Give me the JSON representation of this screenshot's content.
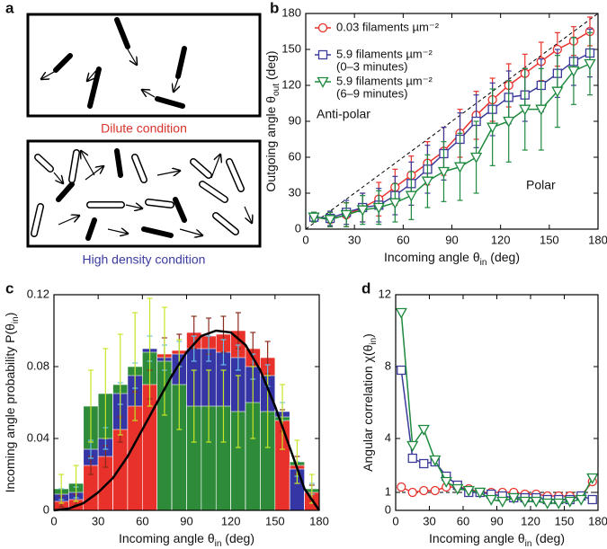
{
  "panel_a": {
    "label": "a",
    "dilute": "Dilute condition",
    "dense": "High density condition"
  },
  "chart_data": [
    {
      "type": "line",
      "label": "b",
      "xlabel": {
        "text": "Incoming angle θ",
        "sub": "in",
        "tail": " (deg)"
      },
      "ylabel": {
        "text": "Outgoing angle θ",
        "sub": "out",
        "tail": " (deg)"
      },
      "x": [
        5,
        15,
        25,
        35,
        45,
        55,
        65,
        75,
        85,
        95,
        105,
        115,
        125,
        135,
        145,
        155,
        165,
        175
      ],
      "xlim": [
        0,
        180
      ],
      "xticks": [
        0,
        30,
        60,
        90,
        120,
        150,
        180
      ],
      "ylim": [
        0,
        180
      ],
      "yticks": [
        0,
        30,
        60,
        90,
        120,
        150,
        180
      ],
      "diagonal": true,
      "legend": "upper left",
      "annotations": [
        "Anti-polar",
        "Polar"
      ],
      "series": [
        {
          "name": "0.03 filaments µm⁻²",
          "color": "#e8312a",
          "marker": "circle",
          "values": [
            10,
            8,
            12,
            18,
            25,
            35,
            45,
            55,
            65,
            80,
            95,
            108,
            120,
            130,
            140,
            150,
            157,
            165
          ],
          "errors": [
            4,
            6,
            10,
            12,
            14,
            15,
            16,
            18,
            20,
            20,
            20,
            18,
            18,
            16,
            16,
            14,
            12,
            12
          ]
        },
        {
          "name": "5.9 filaments µm⁻²",
          "note": "(0–3 minutes)",
          "color": "#3a3a9a",
          "marker": "square",
          "values": [
            10,
            9,
            14,
            18,
            20,
            28,
            38,
            50,
            63,
            75,
            90,
            100,
            110,
            112,
            120,
            130,
            140,
            147
          ],
          "errors": [
            4,
            6,
            10,
            12,
            14,
            16,
            18,
            20,
            22,
            22,
            22,
            22,
            22,
            22,
            22,
            20,
            20,
            20
          ]
        },
        {
          "name": "5.9 filaments µm⁻²",
          "note": "(6–9 minutes)",
          "color": "#1e8a3e",
          "marker": "triangle-down",
          "values": [
            10,
            8,
            12,
            16,
            18,
            22,
            28,
            40,
            48,
            52,
            60,
            85,
            90,
            100,
            100,
            115,
            132,
            138
          ],
          "errors": [
            4,
            6,
            10,
            12,
            14,
            16,
            20,
            22,
            25,
            28,
            30,
            32,
            34,
            34,
            34,
            30,
            28,
            26
          ]
        }
      ]
    },
    {
      "type": "histogram",
      "label": "c",
      "xlabel": {
        "text": "Incoming angle θ",
        "sub": "in",
        "tail": " (deg)"
      },
      "ylabel": {
        "text": "Incoming angle probability P(θ",
        "sub": "in",
        "tail": ")"
      },
      "bins": [
        0,
        10,
        20,
        30,
        40,
        50,
        60,
        70,
        80,
        90,
        100,
        110,
        120,
        130,
        140,
        150,
        160,
        170,
        180
      ],
      "xlim": [
        0,
        180
      ],
      "xticks": [
        0,
        30,
        60,
        90,
        120,
        150,
        180
      ],
      "ylim": [
        0,
        0.12
      ],
      "yticks": [
        0,
        0.04,
        0.08,
        0.12
      ],
      "series": [
        {
          "color": "#e8312a",
          "error_color": "#8b2a1a",
          "values": [
            0.005,
            0.006,
            0.025,
            0.03,
            0.045,
            0.058,
            0.07,
            0.087,
            0.089,
            0.099,
            0.097,
            0.098,
            0.1,
            0.09,
            0.085,
            0.05,
            0.025,
            0.01
          ],
          "errors": [
            0.003,
            0.003,
            0.005,
            0.006,
            0.007,
            0.008,
            0.008,
            0.009,
            0.009,
            0.009,
            0.01,
            0.01,
            0.01,
            0.009,
            0.009,
            0.006,
            0.005,
            0.004
          ]
        },
        {
          "color": "#3535a5",
          "error_color": "#6ac0e8",
          "values": [
            0.009,
            0.01,
            0.034,
            0.04,
            0.065,
            0.075,
            0.09,
            0.085,
            0.087,
            0.09,
            0.09,
            0.088,
            0.085,
            0.08,
            0.075,
            0.055,
            0.023,
            0.012
          ],
          "errors": [
            0.003,
            0.003,
            0.005,
            0.006,
            0.006,
            0.007,
            0.007,
            0.007,
            0.007,
            0.007,
            0.007,
            0.007,
            0.007,
            0.007,
            0.006,
            0.005,
            0.004,
            0.003
          ]
        },
        {
          "color": "#2e8b3a",
          "error_color": "#c8e628",
          "values": [
            0.012,
            0.015,
            0.058,
            0.065,
            0.07,
            0.08,
            0.088,
            0.083,
            0.07,
            0.058,
            0.058,
            0.058,
            0.055,
            0.06,
            0.055,
            0.052,
            0.027,
            0.012
          ],
          "errors": [
            0.008,
            0.01,
            0.02,
            0.025,
            0.028,
            0.03,
            0.03,
            0.03,
            0.025,
            0.02,
            0.02,
            0.02,
            0.02,
            0.02,
            0.02,
            0.018,
            0.012,
            0.008
          ]
        }
      ],
      "curve": {
        "color": "#000000",
        "x": [
          0,
          10,
          20,
          30,
          40,
          50,
          60,
          70,
          80,
          90,
          100,
          110,
          120,
          130,
          140,
          150,
          160,
          170,
          180
        ],
        "values": [
          0,
          0.001,
          0.004,
          0.01,
          0.018,
          0.03,
          0.045,
          0.06,
          0.075,
          0.088,
          0.097,
          0.1,
          0.099,
          0.092,
          0.078,
          0.058,
          0.035,
          0.012,
          0
        ]
      }
    },
    {
      "type": "line",
      "label": "d",
      "xlabel": {
        "text": "Incoming angle θ",
        "sub": "in",
        "tail": " (deg)"
      },
      "ylabel": {
        "text": "Angular correlation χ(θ",
        "sub": "in",
        "tail": ")"
      },
      "x": [
        5,
        15,
        25,
        35,
        45,
        55,
        65,
        75,
        85,
        95,
        105,
        115,
        125,
        135,
        145,
        155,
        165,
        175
      ],
      "xlim": [
        0,
        180
      ],
      "xticks": [
        0,
        30,
        60,
        90,
        120,
        150,
        180
      ],
      "ylim": [
        0,
        12
      ],
      "yticks": [
        0,
        1,
        4,
        8,
        12
      ],
      "reference_line": 1,
      "series": [
        {
          "color": "#e8312a",
          "marker": "circle",
          "values": [
            1.3,
            1.0,
            1.1,
            1.1,
            1.3,
            1.3,
            1.2,
            1.0,
            1.0,
            1.0,
            1.0,
            0.9,
            0.9,
            0.8,
            0.8,
            0.8,
            0.8,
            1.6
          ]
        },
        {
          "color": "#3a3a9a",
          "marker": "square",
          "values": [
            7.8,
            2.9,
            2.6,
            2.7,
            1.9,
            1.4,
            1.0,
            1.0,
            0.9,
            0.8,
            0.7,
            0.7,
            0.7,
            0.6,
            0.6,
            0.6,
            0.8,
            0.6
          ]
        },
        {
          "color": "#1e8a3e",
          "marker": "triangle-down",
          "values": [
            11,
            3.6,
            4.5,
            2.8,
            1.6,
            1.2,
            1.1,
            1.0,
            0.6,
            0.5,
            0.7,
            0.5,
            0.5,
            0.4,
            0.4,
            0.5,
            0.6,
            1.8
          ]
        }
      ]
    }
  ]
}
